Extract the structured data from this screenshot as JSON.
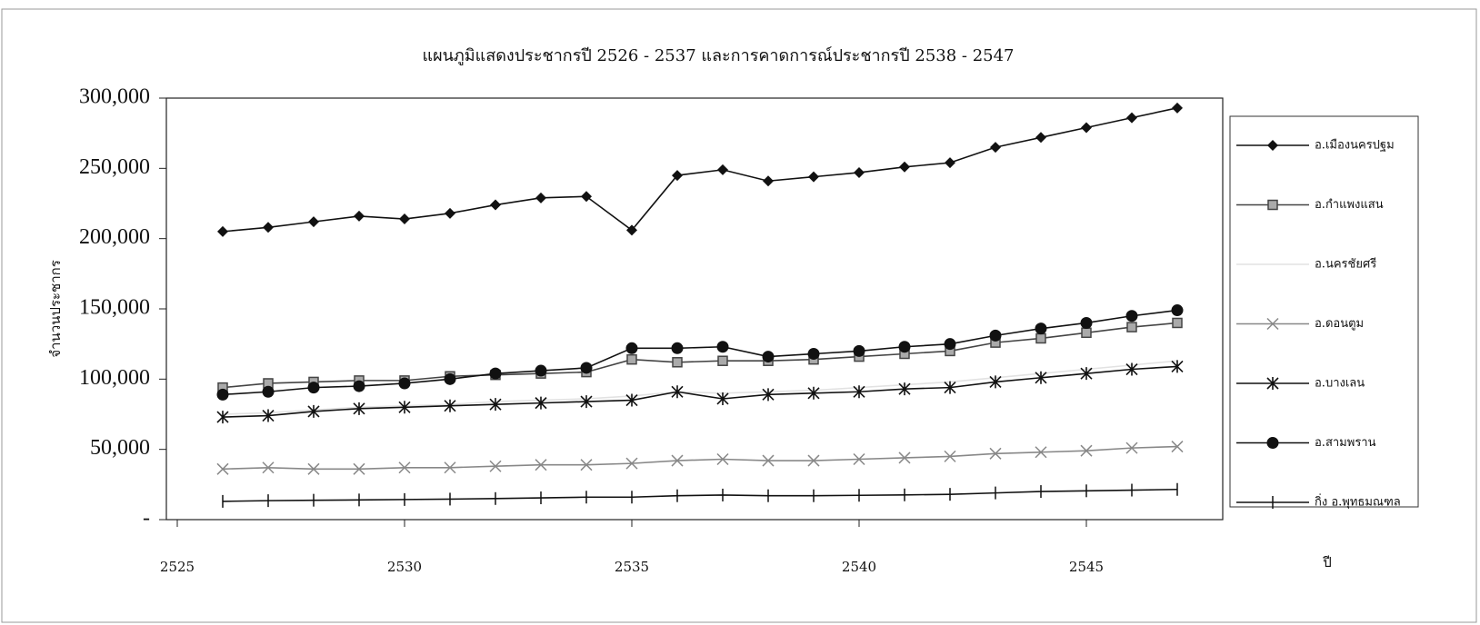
{
  "chart_data": {
    "type": "line",
    "title": "แผนภูมิแสดงประชากรปี 2526 - 2537 และการคาดการณ์ประชากรปี 2538 - 2547",
    "y_label": "จำนวนประชากร",
    "x_label": "ปี",
    "x": [
      2526,
      2527,
      2528,
      2529,
      2530,
      2531,
      2532,
      2533,
      2534,
      2535,
      2536,
      2537,
      2538,
      2539,
      2540,
      2541,
      2542,
      2543,
      2544,
      2545,
      2546,
      2547
    ],
    "xlim": [
      2525,
      2548
    ],
    "xticks": [
      2525,
      2530,
      2535,
      2540,
      2545
    ],
    "ylim": [
      0,
      300000
    ],
    "yticks": [
      {
        "value": 0,
        "label": "-"
      },
      {
        "value": 50000,
        "label": "50,000"
      },
      {
        "value": 100000,
        "label": "100,000"
      },
      {
        "value": 150000,
        "label": "150,000"
      },
      {
        "value": 200000,
        "label": "200,000"
      },
      {
        "value": 250000,
        "label": "250,000"
      },
      {
        "value": 300000,
        "label": "300,000"
      }
    ],
    "legend": "right",
    "series": [
      {
        "name": "อ.เมืองนครปฐม",
        "color": "#111111",
        "marker": "diamond",
        "values": [
          205000,
          208000,
          212000,
          216000,
          214000,
          218000,
          224000,
          229000,
          230000,
          206000,
          245000,
          249000,
          241000,
          244000,
          247000,
          251000,
          254000,
          265000,
          272000,
          279000,
          286000,
          293000
        ]
      },
      {
        "name": "อ.กำแพงแสน",
        "color": "#444444",
        "marker": "square",
        "values": [
          94000,
          97000,
          98000,
          99000,
          99000,
          102000,
          103000,
          104000,
          105000,
          114000,
          112000,
          113000,
          113000,
          114000,
          116000,
          118000,
          120000,
          126000,
          129000,
          133000,
          137000,
          140000
        ]
      },
      {
        "name": "อ.นครชัยศรี",
        "color": "#e2e2e2",
        "marker": "none",
        "values": [
          75000,
          76000,
          78000,
          80000,
          81000,
          82000,
          84000,
          85000,
          86000,
          88000,
          91000,
          90000,
          91000,
          92000,
          94000,
          96000,
          98000,
          101000,
          104000,
          107000,
          110000,
          113000
        ]
      },
      {
        "name": "อ.ดอนตูม",
        "color": "#888888",
        "marker": "x",
        "values": [
          36000,
          37000,
          36000,
          36000,
          37000,
          37000,
          38000,
          39000,
          39000,
          40000,
          42000,
          43000,
          42000,
          42000,
          43000,
          44000,
          45000,
          47000,
          48000,
          49000,
          51000,
          52000
        ]
      },
      {
        "name": "อ.บางเลน",
        "color": "#111111",
        "marker": "star",
        "values": [
          73000,
          74000,
          77000,
          79000,
          80000,
          81000,
          82000,
          83000,
          84000,
          85000,
          91000,
          86000,
          89000,
          90000,
          91000,
          93000,
          94000,
          98000,
          101000,
          104000,
          107000,
          109000
        ]
      },
      {
        "name": "อ.สามพราน",
        "color": "#111111",
        "marker": "circle",
        "values": [
          89000,
          91000,
          94000,
          95000,
          97000,
          100000,
          104000,
          106000,
          108000,
          122000,
          122000,
          123000,
          116000,
          118000,
          120000,
          123000,
          125000,
          131000,
          136000,
          140000,
          145000,
          149000
        ]
      },
      {
        "name": "กิ่ง อ.พุทธมณฑล",
        "color": "#111111",
        "marker": "plus",
        "values": [
          13000,
          13500,
          13800,
          14000,
          14300,
          14600,
          15000,
          15500,
          16000,
          16000,
          17000,
          17500,
          17000,
          17000,
          17300,
          17600,
          18000,
          19000,
          20000,
          20500,
          21000,
          21500
        ]
      }
    ]
  }
}
